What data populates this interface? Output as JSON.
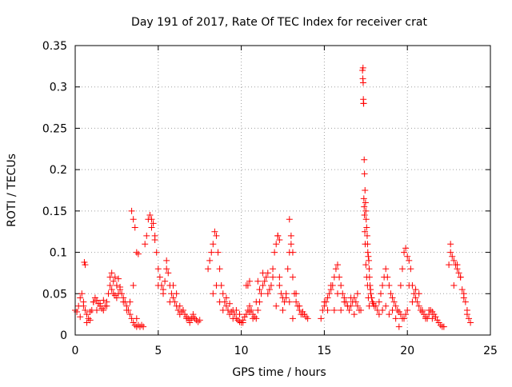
{
  "chart_data": {
    "type": "scatter",
    "title": "Day 191 of 2017, Rate Of TEC Index for receiver crat",
    "xlabel": "GPS time / hours",
    "ylabel": "ROTI / TECUs",
    "xlim": [
      0,
      25
    ],
    "ylim": [
      0,
      0.35
    ],
    "xticks": [
      0,
      5,
      10,
      15,
      20,
      25
    ],
    "yticks": [
      0,
      0.05,
      0.1,
      0.15,
      0.2,
      0.25,
      0.3,
      0.35
    ],
    "xtick_labels": [
      "0",
      "5",
      "10",
      "15",
      "20",
      "25"
    ],
    "ytick_labels": [
      "0",
      "0.05",
      "0.1",
      "0.15",
      "0.2",
      "0.25",
      "0.3",
      "0.35"
    ],
    "grid": true,
    "marker": "plus",
    "marker_color": "#ff0000",
    "points": {
      "x": [
        0.0,
        0.1,
        0.2,
        0.3,
        0.4,
        0.5,
        0.6,
        0.7,
        0.8,
        0.9,
        1.0,
        1.1,
        1.2,
        1.3,
        1.4,
        1.5,
        1.6,
        1.7,
        1.8,
        1.9,
        2.0,
        2.1,
        2.2,
        2.3,
        2.4,
        2.5,
        2.6,
        2.7,
        2.8,
        2.9,
        3.0,
        3.1,
        3.2,
        3.3,
        3.4,
        3.5,
        3.6,
        3.7,
        3.8,
        3.9,
        4.0,
        4.1,
        0.3,
        0.5,
        0.7,
        0.9,
        1.1,
        1.3,
        1.5,
        1.7,
        1.9,
        2.1,
        2.3,
        2.5,
        2.7,
        2.9,
        3.1,
        3.3,
        3.5,
        3.7,
        0.6,
        0.55,
        2.2,
        2.4,
        2.6,
        3.4,
        3.5,
        3.6,
        3.7,
        3.8,
        4.2,
        4.3,
        4.4,
        4.5,
        4.6,
        4.7,
        4.8,
        4.9,
        5.0,
        5.1,
        5.2,
        5.3,
        5.4,
        5.5,
        5.6,
        5.7,
        5.8,
        5.9,
        6.0,
        6.1,
        6.2,
        6.3,
        6.4,
        6.5,
        6.6,
        6.7,
        6.8,
        6.9,
        7.0,
        7.1,
        7.2,
        7.3,
        7.4,
        7.5,
        4.6,
        4.8,
        5.0,
        5.3,
        5.5,
        5.7,
        5.9,
        6.1,
        6.3,
        6.5,
        6.7,
        6.9,
        7.1,
        8.0,
        8.1,
        8.2,
        8.3,
        8.4,
        8.5,
        8.6,
        8.7,
        8.8,
        8.9,
        9.0,
        9.1,
        9.2,
        9.3,
        9.4,
        9.5,
        9.6,
        9.7,
        9.8,
        9.9,
        10.0,
        10.1,
        10.2,
        10.3,
        10.4,
        10.5,
        10.6,
        10.7,
        10.8,
        10.9,
        11.0,
        11.1,
        11.2,
        11.3,
        11.4,
        11.5,
        11.6,
        8.3,
        8.5,
        8.7,
        8.9,
        9.1,
        9.3,
        9.5,
        9.7,
        9.9,
        10.1,
        10.3,
        10.5,
        10.7,
        10.9,
        11.1,
        10.4,
        10.5,
        11.0,
        11.3,
        11.6,
        11.7,
        11.8,
        11.9,
        12.0,
        12.1,
        12.2,
        12.3,
        12.4,
        12.5,
        12.6,
        12.7,
        12.8,
        12.9,
        13.0,
        13.1,
        13.2,
        13.3,
        13.4,
        13.5,
        13.6,
        13.7,
        13.8,
        13.9,
        14.0,
        11.9,
        12.1,
        12.3,
        12.5,
        12.7,
        12.9,
        13.1,
        13.3,
        13.5,
        13.7,
        12.2,
        12.3,
        12.9,
        13.0,
        13.1,
        14.8,
        14.9,
        15.0,
        15.1,
        15.2,
        15.3,
        15.4,
        15.5,
        15.6,
        15.7,
        15.8,
        15.9,
        16.0,
        16.1,
        16.2,
        16.3,
        16.4,
        16.5,
        16.6,
        16.7,
        16.8,
        16.9,
        17.0,
        17.1,
        17.2,
        15.0,
        15.2,
        15.4,
        15.6,
        15.8,
        16.0,
        16.2,
        16.4,
        16.6,
        16.8,
        17.0,
        17.3,
        17.32,
        17.35,
        17.37,
        17.4,
        17.42,
        17.45,
        17.48,
        17.5,
        17.52,
        17.55,
        17.58,
        17.6,
        17.62,
        17.65,
        17.68,
        17.7,
        17.72,
        17.75,
        17.78,
        17.8,
        17.85,
        17.9,
        17.95,
        18.0,
        17.33,
        17.34,
        17.36,
        17.38,
        17.4,
        17.42,
        17.44,
        17.46,
        17.5,
        17.55,
        17.6,
        17.65,
        17.7,
        18.1,
        18.2,
        18.3,
        18.4,
        18.5,
        18.6,
        18.7,
        18.8,
        18.9,
        19.0,
        19.1,
        19.2,
        19.3,
        19.4,
        19.5,
        19.6,
        19.7,
        18.3,
        18.5,
        18.7,
        18.9,
        19.1,
        19.3,
        19.5,
        19.6,
        19.7,
        19.8,
        19.9,
        20.0,
        20.1,
        20.2,
        20.3,
        20.4,
        20.5,
        20.6,
        20.7,
        20.8,
        20.9,
        21.0,
        21.1,
        21.2,
        21.3,
        21.4,
        21.5,
        21.6,
        21.7,
        21.8,
        21.9,
        22.0,
        22.1,
        22.2,
        19.8,
        19.9,
        20.0,
        20.1,
        20.3,
        20.5,
        20.7,
        20.9,
        21.1,
        21.3,
        21.5,
        22.5,
        22.6,
        22.7,
        22.8,
        22.9,
        23.0,
        23.1,
        23.2,
        23.3,
        23.4,
        23.5,
        23.6,
        23.7,
        23.8,
        22.6,
        22.8,
        23.0,
        23.2,
        23.4,
        23.6
      ],
      "y": [
        0.03,
        0.028,
        0.035,
        0.045,
        0.05,
        0.04,
        0.03,
        0.025,
        0.02,
        0.018,
        0.03,
        0.04,
        0.045,
        0.042,
        0.038,
        0.035,
        0.032,
        0.03,
        0.035,
        0.04,
        0.05,
        0.06,
        0.055,
        0.05,
        0.048,
        0.045,
        0.05,
        0.055,
        0.05,
        0.045,
        0.04,
        0.035,
        0.03,
        0.025,
        0.02,
        0.015,
        0.012,
        0.01,
        0.012,
        0.01,
        0.012,
        0.01,
        0.022,
        0.035,
        0.015,
        0.028,
        0.04,
        0.03,
        0.038,
        0.042,
        0.035,
        0.07,
        0.065,
        0.06,
        0.058,
        0.04,
        0.03,
        0.04,
        0.06,
        0.02,
        0.085,
        0.088,
        0.075,
        0.07,
        0.068,
        0.15,
        0.14,
        0.13,
        0.1,
        0.098,
        0.11,
        0.12,
        0.14,
        0.145,
        0.14,
        0.135,
        0.12,
        0.1,
        0.08,
        0.07,
        0.06,
        0.055,
        0.065,
        0.08,
        0.075,
        0.06,
        0.05,
        0.045,
        0.04,
        0.035,
        0.03,
        0.025,
        0.028,
        0.03,
        0.025,
        0.022,
        0.02,
        0.018,
        0.02,
        0.022,
        0.02,
        0.018,
        0.016,
        0.018,
        0.13,
        0.115,
        0.06,
        0.05,
        0.09,
        0.04,
        0.06,
        0.05,
        0.035,
        0.03,
        0.02,
        0.015,
        0.025,
        0.08,
        0.09,
        0.1,
        0.11,
        0.125,
        0.12,
        0.1,
        0.08,
        0.06,
        0.05,
        0.04,
        0.035,
        0.03,
        0.025,
        0.028,
        0.03,
        0.025,
        0.02,
        0.018,
        0.016,
        0.015,
        0.018,
        0.022,
        0.025,
        0.03,
        0.035,
        0.03,
        0.025,
        0.022,
        0.02,
        0.03,
        0.04,
        0.05,
        0.06,
        0.065,
        0.07,
        0.075,
        0.05,
        0.06,
        0.04,
        0.03,
        0.045,
        0.038,
        0.02,
        0.03,
        0.025,
        0.015,
        0.06,
        0.028,
        0.02,
        0.04,
        0.055,
        0.06,
        0.065,
        0.065,
        0.075,
        0.05,
        0.055,
        0.06,
        0.08,
        0.1,
        0.11,
        0.12,
        0.07,
        0.05,
        0.045,
        0.04,
        0.05,
        0.08,
        0.1,
        0.11,
        0.07,
        0.05,
        0.04,
        0.035,
        0.03,
        0.025,
        0.028,
        0.025,
        0.022,
        0.02,
        0.07,
        0.035,
        0.06,
        0.03,
        0.045,
        0.04,
        0.02,
        0.05,
        0.035,
        0.025,
        0.12,
        0.115,
        0.14,
        0.12,
        0.1,
        0.02,
        0.03,
        0.035,
        0.04,
        0.045,
        0.05,
        0.055,
        0.06,
        0.07,
        0.08,
        0.085,
        0.07,
        0.06,
        0.05,
        0.045,
        0.04,
        0.035,
        0.03,
        0.035,
        0.04,
        0.045,
        0.04,
        0.035,
        0.03,
        0.03,
        0.04,
        0.03,
        0.06,
        0.03,
        0.05,
        0.03,
        0.04,
        0.035,
        0.045,
        0.025,
        0.05,
        0.32,
        0.31,
        0.285,
        0.28,
        0.212,
        0.195,
        0.175,
        0.16,
        0.15,
        0.14,
        0.13,
        0.12,
        0.11,
        0.1,
        0.095,
        0.09,
        0.08,
        0.07,
        0.06,
        0.055,
        0.05,
        0.045,
        0.04,
        0.038,
        0.035,
        0.323,
        0.305,
        0.28,
        0.165,
        0.155,
        0.145,
        0.125,
        0.11,
        0.085,
        0.07,
        0.06,
        0.045,
        0.035,
        0.035,
        0.03,
        0.04,
        0.05,
        0.06,
        0.07,
        0.08,
        0.07,
        0.06,
        0.05,
        0.045,
        0.04,
        0.035,
        0.03,
        0.028,
        0.025,
        0.02,
        0.025,
        0.03,
        0.035,
        0.025,
        0.03,
        0.02,
        0.01,
        0.06,
        0.08,
        0.1,
        0.105,
        0.095,
        0.09,
        0.08,
        0.06,
        0.05,
        0.045,
        0.04,
        0.035,
        0.03,
        0.028,
        0.025,
        0.022,
        0.02,
        0.025,
        0.03,
        0.028,
        0.025,
        0.022,
        0.018,
        0.015,
        0.012,
        0.01,
        0.01,
        0.02,
        0.025,
        0.03,
        0.06,
        0.04,
        0.055,
        0.05,
        0.03,
        0.02,
        0.03,
        0.02,
        0.085,
        0.1,
        0.095,
        0.09,
        0.085,
        0.08,
        0.075,
        0.07,
        0.055,
        0.045,
        0.04,
        0.03,
        0.02,
        0.015,
        0.11,
        0.06,
        0.085,
        0.07,
        0.05,
        0.025
      ]
    }
  }
}
